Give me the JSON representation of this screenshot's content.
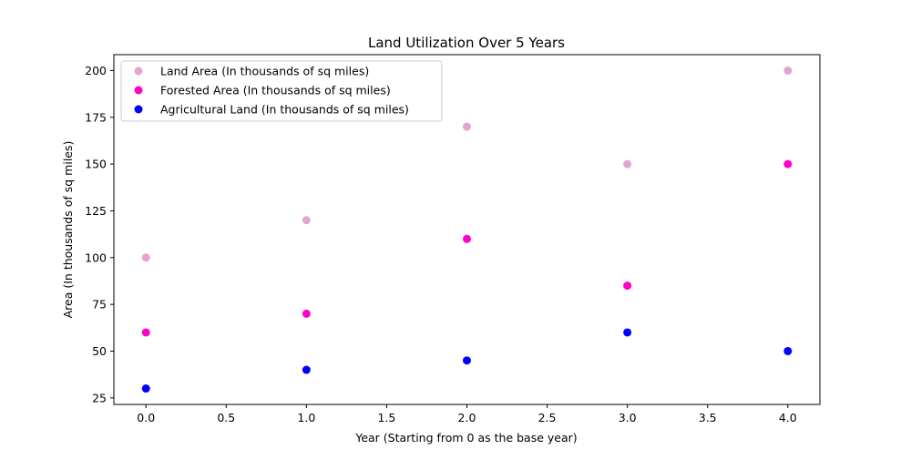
{
  "chart_data": {
    "type": "scatter",
    "title": "Land Utilization Over 5 Years",
    "xlabel": "Year (Starting from 0 as the base year)",
    "ylabel": "Area (In thousands of sq miles)",
    "xlim": [
      -0.2,
      4.2
    ],
    "ylim": [
      21.5,
      208.5
    ],
    "x_ticks": [
      0.0,
      0.5,
      1.0,
      1.5,
      2.0,
      2.5,
      3.0,
      3.5,
      4.0
    ],
    "x_tick_labels": [
      "0.0",
      "0.5",
      "1.0",
      "1.5",
      "2.0",
      "2.5",
      "3.0",
      "3.5",
      "4.0"
    ],
    "y_ticks": [
      25,
      50,
      75,
      100,
      125,
      150,
      175,
      200
    ],
    "y_tick_labels": [
      "25",
      "50",
      "75",
      "100",
      "125",
      "150",
      "175",
      "200"
    ],
    "x": [
      0,
      1,
      2,
      3,
      4
    ],
    "series": [
      {
        "name": "Land Area (In thousands of sq miles)",
        "values": [
          100,
          120,
          170,
          150,
          200
        ],
        "color": "#e0a6cf"
      },
      {
        "name": "Forested Area (In thousands of sq miles)",
        "values": [
          60,
          70,
          110,
          85,
          150
        ],
        "color": "#ff00c8"
      },
      {
        "name": "Agricultural Land (In thousands of sq miles)",
        "values": [
          30,
          40,
          45,
          60,
          50
        ],
        "color": "#0000ff"
      }
    ],
    "legend_position": "top-left",
    "grid": false
  }
}
